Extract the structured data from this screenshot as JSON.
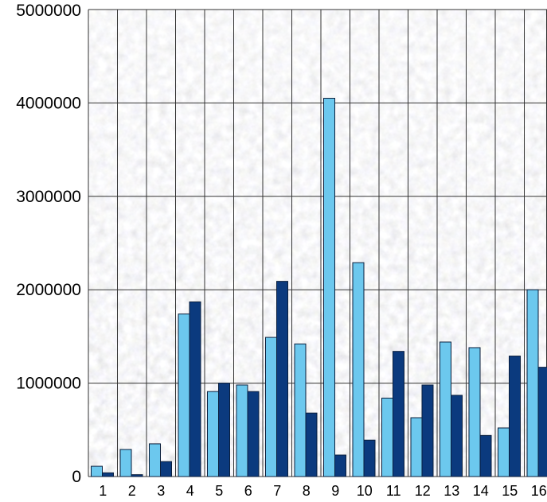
{
  "chart_data": {
    "type": "bar",
    "categories": [
      "1",
      "2",
      "3",
      "4",
      "5",
      "6",
      "7",
      "8",
      "9",
      "10",
      "11",
      "12",
      "13",
      "14",
      "15",
      "16"
    ],
    "series": [
      {
        "values": [
          110000,
          290000,
          350000,
          1740000,
          910000,
          980000,
          1490000,
          1420000,
          4050000,
          2290000,
          840000,
          630000,
          1440000,
          1380000,
          520000,
          2000000
        ]
      },
      {
        "values": [
          40000,
          20000,
          160000,
          1870000,
          1000000,
          910000,
          2090000,
          680000,
          230000,
          390000,
          1340000,
          980000,
          870000,
          440000,
          1290000,
          1170000
        ]
      }
    ],
    "colors": [
      "#6cc8ee",
      "#0b3a7e"
    ],
    "ylim": [
      0,
      5000000
    ],
    "yticks": [
      "0",
      "1000000",
      "2000000",
      "3000000",
      "4000000",
      "5000000"
    ],
    "grid": true,
    "background": "photo of a dense crowd, faded",
    "title": "",
    "xlabel": "",
    "ylabel": ""
  }
}
